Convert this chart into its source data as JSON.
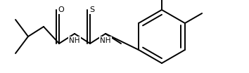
{
  "bg_color": "#ffffff",
  "line_color": "#000000",
  "line_width": 1.4,
  "font_size": 7.5,
  "figsize": [
    3.54,
    1.04
  ],
  "dpi": 100,
  "xlim": [
    0,
    354
  ],
  "ylim": [
    0,
    104
  ]
}
